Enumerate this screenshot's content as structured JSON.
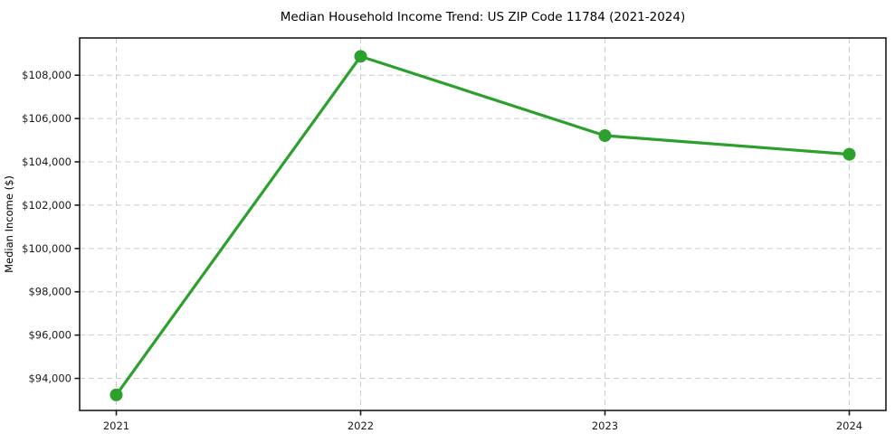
{
  "chart_data": {
    "type": "line",
    "title": "Median Household Income Trend: US ZIP Code 11784 (2021-2024)",
    "ylabel": "Median Income ($)",
    "xlabel": "",
    "categories": [
      "2021",
      "2022",
      "2023",
      "2024"
    ],
    "series": [
      {
        "name": "Median Household Income",
        "values": [
          93240,
          108870,
          105210,
          104350
        ]
      }
    ],
    "y_ticks": [
      {
        "value": 94000,
        "label": "$94,000"
      },
      {
        "value": 96000,
        "label": "$96,000"
      },
      {
        "value": 98000,
        "label": "$98,000"
      },
      {
        "value": 100000,
        "label": "$100,000"
      },
      {
        "value": 102000,
        "label": "$102,000"
      },
      {
        "value": 104000,
        "label": "$104,000"
      },
      {
        "value": 106000,
        "label": "$106,000"
      },
      {
        "value": 108000,
        "label": "$108,000"
      }
    ],
    "ylim": [
      92520,
      109720
    ],
    "grid": "dashed-both",
    "legend": "none",
    "marker": "circle",
    "colors": {
      "line": "#2ca02c",
      "marker": "#2ca02c",
      "grid": "#cccccc",
      "axis": "#1a1a1a",
      "text": "#000000",
      "background": "#ffffff"
    }
  }
}
